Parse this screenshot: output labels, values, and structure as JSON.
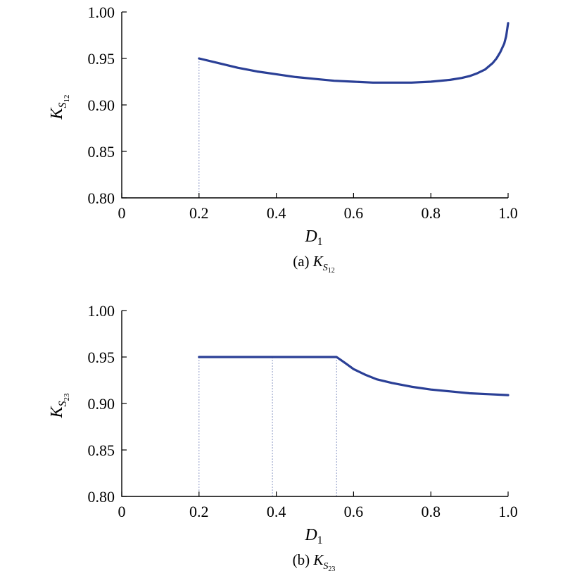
{
  "colors": {
    "series": "#2a3f96",
    "guide": "#8e9ac6"
  },
  "chart_data": [
    {
      "type": "line",
      "caption_prefix": "(a) ",
      "caption_symbol": {
        "base": "K",
        "sub1": "S",
        "sub2": "12"
      },
      "xlabel": {
        "base": "D",
        "sub": "1"
      },
      "ylabel": {
        "base": "K",
        "sub1": "S",
        "sub2": "12"
      },
      "xlim": [
        0,
        1.0
      ],
      "ylim": [
        0.8,
        1.0
      ],
      "xticks": [
        0,
        0.2,
        0.4,
        0.6,
        0.8,
        1.0
      ],
      "xtick_labels": [
        "0",
        "0.2",
        "0.4",
        "0.6",
        "0.8",
        "1.0"
      ],
      "yticks": [
        0.8,
        0.85,
        0.9,
        0.95,
        1.0
      ],
      "ytick_labels": [
        "0.80",
        "0.85",
        "0.90",
        "0.95",
        "1.00"
      ],
      "x": [
        0.2,
        0.25,
        0.3,
        0.35,
        0.4,
        0.45,
        0.5,
        0.55,
        0.6,
        0.65,
        0.7,
        0.75,
        0.8,
        0.85,
        0.88,
        0.9,
        0.92,
        0.94,
        0.96,
        0.97,
        0.98,
        0.99,
        0.995,
        1.0
      ],
      "y": [
        0.95,
        0.945,
        0.94,
        0.936,
        0.933,
        0.93,
        0.928,
        0.926,
        0.925,
        0.924,
        0.924,
        0.924,
        0.925,
        0.927,
        0.929,
        0.931,
        0.934,
        0.938,
        0.945,
        0.95,
        0.957,
        0.966,
        0.974,
        0.988
      ],
      "guides": [
        {
          "x": 0.2,
          "y": 0.95
        }
      ]
    },
    {
      "type": "line",
      "caption_prefix": "(b) ",
      "caption_symbol": {
        "base": "K",
        "sub1": "S",
        "sub2": "23"
      },
      "xlabel": {
        "base": "D",
        "sub": "1"
      },
      "ylabel": {
        "base": "K",
        "sub1": "S",
        "sub2": "23"
      },
      "xlim": [
        0,
        1.0
      ],
      "ylim": [
        0.8,
        1.0
      ],
      "xticks": [
        0,
        0.2,
        0.4,
        0.6,
        0.8,
        1.0
      ],
      "xtick_labels": [
        "0",
        "0.2",
        "0.4",
        "0.6",
        "0.8",
        "1.0"
      ],
      "yticks": [
        0.8,
        0.85,
        0.9,
        0.95,
        1.0
      ],
      "ytick_labels": [
        "0.80",
        "0.85",
        "0.90",
        "0.95",
        "1.00"
      ],
      "x": [
        0.2,
        0.3,
        0.4,
        0.5,
        0.556,
        0.58,
        0.6,
        0.63,
        0.66,
        0.7,
        0.75,
        0.8,
        0.85,
        0.9,
        0.95,
        1.0
      ],
      "y": [
        0.95,
        0.95,
        0.95,
        0.95,
        0.95,
        0.943,
        0.937,
        0.931,
        0.926,
        0.922,
        0.918,
        0.915,
        0.913,
        0.911,
        0.91,
        0.909
      ],
      "guides": [
        {
          "x": 0.2,
          "y": 0.95
        },
        {
          "x": 0.39,
          "y": 0.95
        },
        {
          "x": 0.556,
          "y": 0.95
        }
      ]
    }
  ]
}
